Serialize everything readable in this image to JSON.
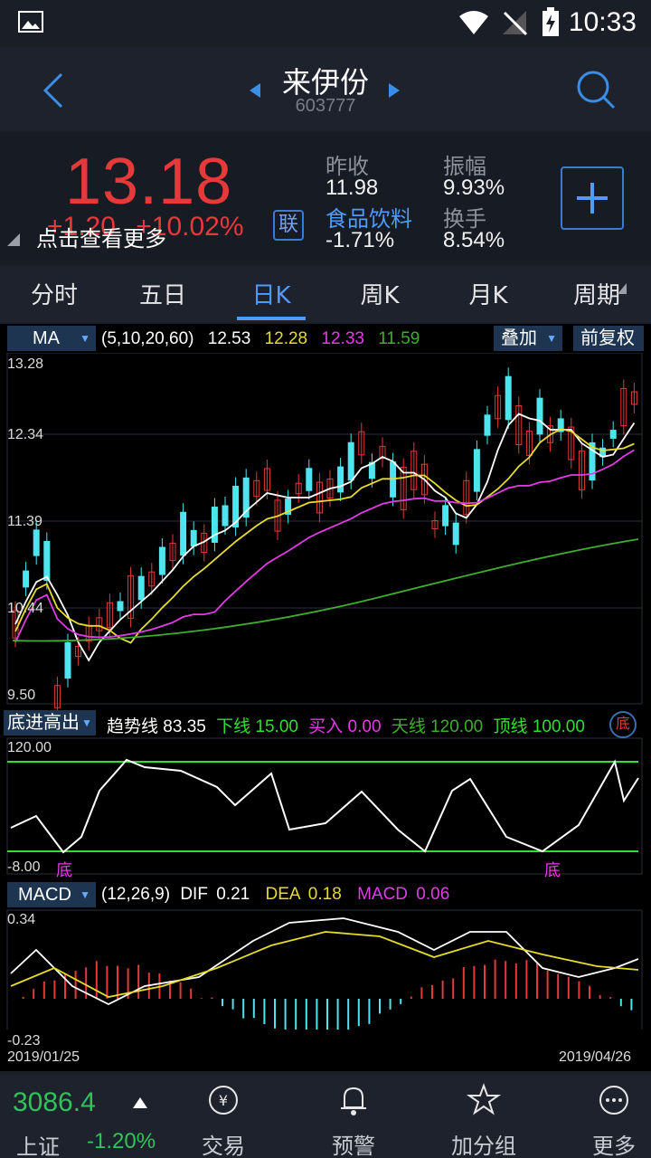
{
  "status": {
    "time": "10:33"
  },
  "header": {
    "name": "来伊份",
    "code": "603777"
  },
  "quote": {
    "last_price": "13.18",
    "change": "+1.20",
    "change_pct": "+10.02%",
    "tooltip": "点击查看更多",
    "lian": "联",
    "prev_close_label": "昨收",
    "prev_close": "11.98",
    "sector": "食品饮料",
    "sector_change": "-1.71%",
    "amplitude_label": "振幅",
    "amplitude": "9.93%",
    "turnover_label": "换手",
    "turnover": "8.54%"
  },
  "tabs": [
    "分时",
    "五日",
    "日K",
    "周K",
    "月K",
    "周期"
  ],
  "main_chart": {
    "indicator": "MA",
    "params": "(5,10,20,60)",
    "ma5": "12.53",
    "ma10": "12.28",
    "ma20": "12.33",
    "ma60": "11.59",
    "overlay": "叠加",
    "adjust": "前复权",
    "y_ticks": [
      "13.28",
      "12.34",
      "11.39",
      "10.44",
      "9.50"
    ]
  },
  "sub_chart": {
    "indicator": "底进高出",
    "trend_label": "趋势线",
    "trend": "83.35",
    "lower_label": "下线",
    "lower": "15.00",
    "buy_label": "买入",
    "buy": "0.00",
    "sky_label": "天线",
    "sky": "120.00",
    "top_label": "顶线",
    "top": "100.00",
    "y_top": "120.00",
    "y_bottom": "-8.00",
    "bottom_mark": "底"
  },
  "macd": {
    "indicator": "MACD",
    "params": "(12,26,9)",
    "dif_label": "DIF",
    "dif": "0.21",
    "dea_label": "DEA",
    "dea": "0.18",
    "macd_label": "MACD",
    "macd": "0.06",
    "y_top": "0.34",
    "y_bottom": "-0.23",
    "date_start": "2019/01/25",
    "date_end": "2019/04/26"
  },
  "bottom": {
    "index_value": "3086.4",
    "index_name": "上证",
    "index_change": "-1.20%",
    "nav": [
      "交易",
      "预警",
      "加分组",
      "更多"
    ]
  },
  "colors": {
    "up": "#e5393a",
    "down": "#4ee6ee",
    "ma5": "#ffffff",
    "ma10": "#e6dc2a",
    "ma20": "#e23ce6",
    "ma60": "#3fae2e",
    "accent": "#4f9bff",
    "green": "#33dd33"
  }
}
